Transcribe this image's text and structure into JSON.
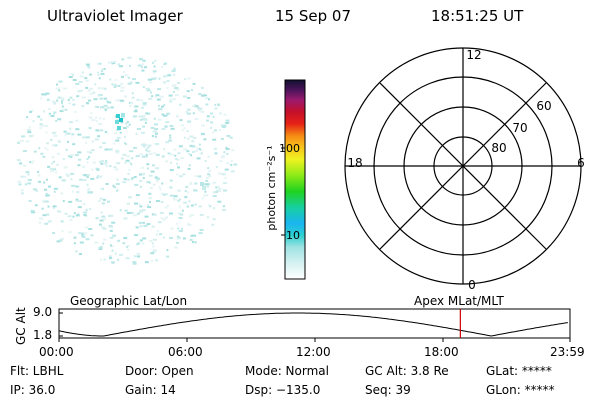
{
  "header": {
    "instrument": "Ultraviolet Imager",
    "date": "15 Sep 07",
    "time": "18:51:25 UT"
  },
  "colorbar": {
    "unit_label": "photon cm⁻²s⁻¹",
    "ticks": [
      "100",
      "10"
    ]
  },
  "polar_plot": {
    "mlt_labels": {
      "top": "12",
      "left": "18",
      "right": "6",
      "bottom": "0"
    },
    "lat_labels": [
      "60",
      "70",
      "80"
    ]
  },
  "orbit_plot": {
    "left_title": "Geographic Lat/Lon",
    "right_title": "Apex  MLat/MLT",
    "ylabel": "GC Alt",
    "yticks": [
      "9.0",
      "1.8"
    ],
    "xticks": [
      "00:00",
      "06:00",
      "12:00",
      "18:00",
      "23:59"
    ],
    "current_time_marker": "18:51",
    "marker_color": "#cc0000"
  },
  "info": {
    "row1": [
      "Flt: LBHL",
      "Door: Open",
      "Mode: Normal",
      "GC Alt: 3.8 Re",
      "GLat: *****"
    ],
    "row2": [
      "IP: 36.0",
      "Gain: 14",
      "Dsp: −135.0",
      "Seq: 39",
      "GLon: *****"
    ]
  }
}
